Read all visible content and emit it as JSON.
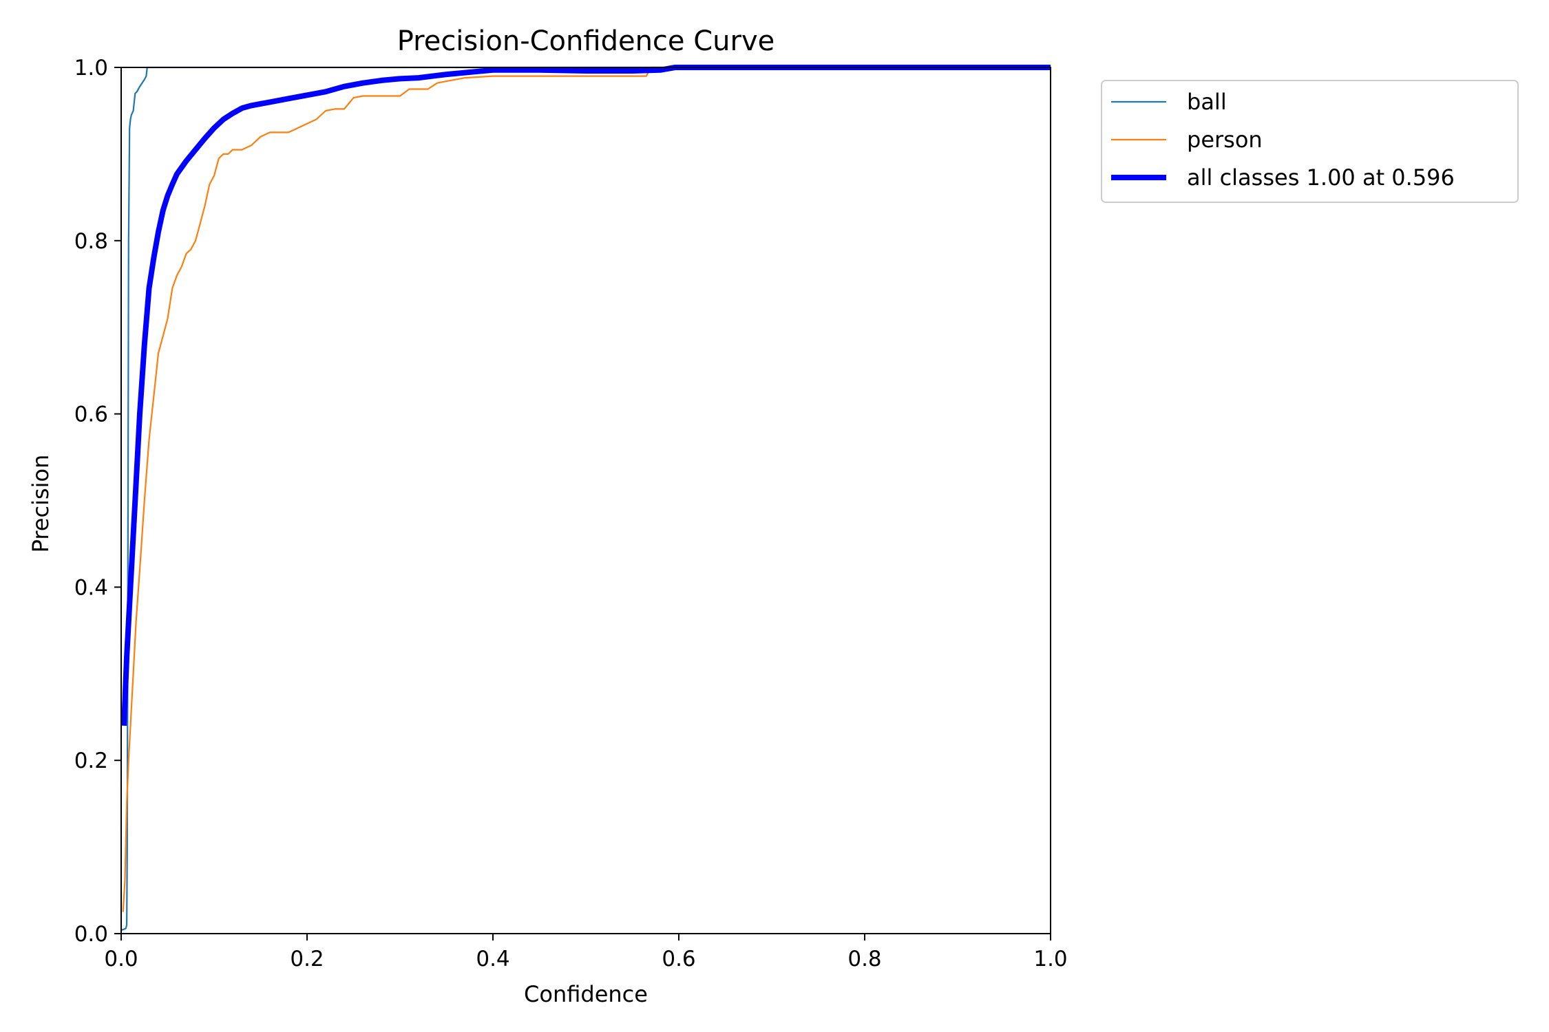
{
  "chart_data": {
    "type": "line",
    "title": "Precision-Confidence Curve",
    "xlabel": "Confidence",
    "ylabel": "Precision",
    "xlim": [
      0.0,
      1.0
    ],
    "ylim": [
      0.0,
      1.0
    ],
    "xticks": [
      "0.0",
      "0.2",
      "0.4",
      "0.6",
      "0.8",
      "1.0"
    ],
    "yticks": [
      "0.0",
      "0.2",
      "0.4",
      "0.6",
      "0.8",
      "1.0"
    ],
    "grid": false,
    "legend_position": "outside-top-right",
    "series": [
      {
        "name": "ball",
        "color": "#1f77b4",
        "width": "thin",
        "x": [
          0.0,
          0.003,
          0.005,
          0.006,
          0.0065,
          0.007,
          0.0075,
          0.008,
          0.009,
          0.01,
          0.011,
          0.013,
          0.015,
          0.017,
          0.02,
          0.025,
          0.027,
          0.028,
          0.03,
          1.0
        ],
        "y": [
          0.004,
          0.005,
          0.006,
          0.01,
          0.1,
          0.3,
          0.55,
          0.8,
          0.93,
          0.94,
          0.945,
          0.95,
          0.97,
          0.972,
          0.978,
          0.986,
          0.99,
          1.0,
          1.0,
          1.0
        ]
      },
      {
        "name": "person",
        "color": "#ff7f0e",
        "width": "thin",
        "x": [
          0.002,
          0.004,
          0.006,
          0.008,
          0.01,
          0.013,
          0.016,
          0.02,
          0.025,
          0.03,
          0.035,
          0.04,
          0.045,
          0.05,
          0.055,
          0.06,
          0.065,
          0.07,
          0.075,
          0.08,
          0.085,
          0.09,
          0.095,
          0.1,
          0.105,
          0.11,
          0.115,
          0.12,
          0.13,
          0.14,
          0.15,
          0.16,
          0.17,
          0.18,
          0.19,
          0.2,
          0.21,
          0.22,
          0.23,
          0.24,
          0.25,
          0.26,
          0.27,
          0.29,
          0.3,
          0.31,
          0.33,
          0.34,
          0.35,
          0.37,
          0.4,
          0.45,
          0.5,
          0.565,
          0.57,
          1.0
        ],
        "y": [
          0.025,
          0.06,
          0.15,
          0.2,
          0.24,
          0.3,
          0.36,
          0.42,
          0.5,
          0.57,
          0.62,
          0.67,
          0.69,
          0.71,
          0.745,
          0.76,
          0.77,
          0.785,
          0.79,
          0.8,
          0.82,
          0.84,
          0.865,
          0.875,
          0.895,
          0.9,
          0.9,
          0.905,
          0.905,
          0.91,
          0.92,
          0.925,
          0.925,
          0.925,
          0.93,
          0.935,
          0.94,
          0.95,
          0.952,
          0.952,
          0.965,
          0.967,
          0.967,
          0.967,
          0.967,
          0.975,
          0.975,
          0.982,
          0.984,
          0.988,
          0.99,
          0.99,
          0.99,
          0.99,
          1.0,
          1.0
        ]
      },
      {
        "name": "all classes 1.00 at 0.596",
        "color": "#0000ff",
        "width": "thick",
        "x": [
          0.003,
          0.006,
          0.01,
          0.015,
          0.02,
          0.025,
          0.03,
          0.035,
          0.04,
          0.045,
          0.05,
          0.055,
          0.06,
          0.07,
          0.08,
          0.09,
          0.1,
          0.11,
          0.12,
          0.13,
          0.14,
          0.16,
          0.18,
          0.2,
          0.22,
          0.24,
          0.26,
          0.28,
          0.3,
          0.32,
          0.35,
          0.38,
          0.4,
          0.45,
          0.5,
          0.55,
          0.58,
          0.596,
          0.62,
          0.7,
          0.8,
          0.9,
          1.0
        ],
        "y": [
          0.24,
          0.32,
          0.4,
          0.5,
          0.6,
          0.68,
          0.745,
          0.78,
          0.81,
          0.835,
          0.852,
          0.865,
          0.877,
          0.892,
          0.905,
          0.918,
          0.93,
          0.94,
          0.947,
          0.953,
          0.956,
          0.96,
          0.964,
          0.968,
          0.972,
          0.978,
          0.982,
          0.985,
          0.987,
          0.988,
          0.992,
          0.995,
          0.997,
          0.997,
          0.996,
          0.996,
          0.997,
          1.0,
          1.0,
          1.0,
          1.0,
          1.0,
          1.0
        ]
      }
    ]
  }
}
